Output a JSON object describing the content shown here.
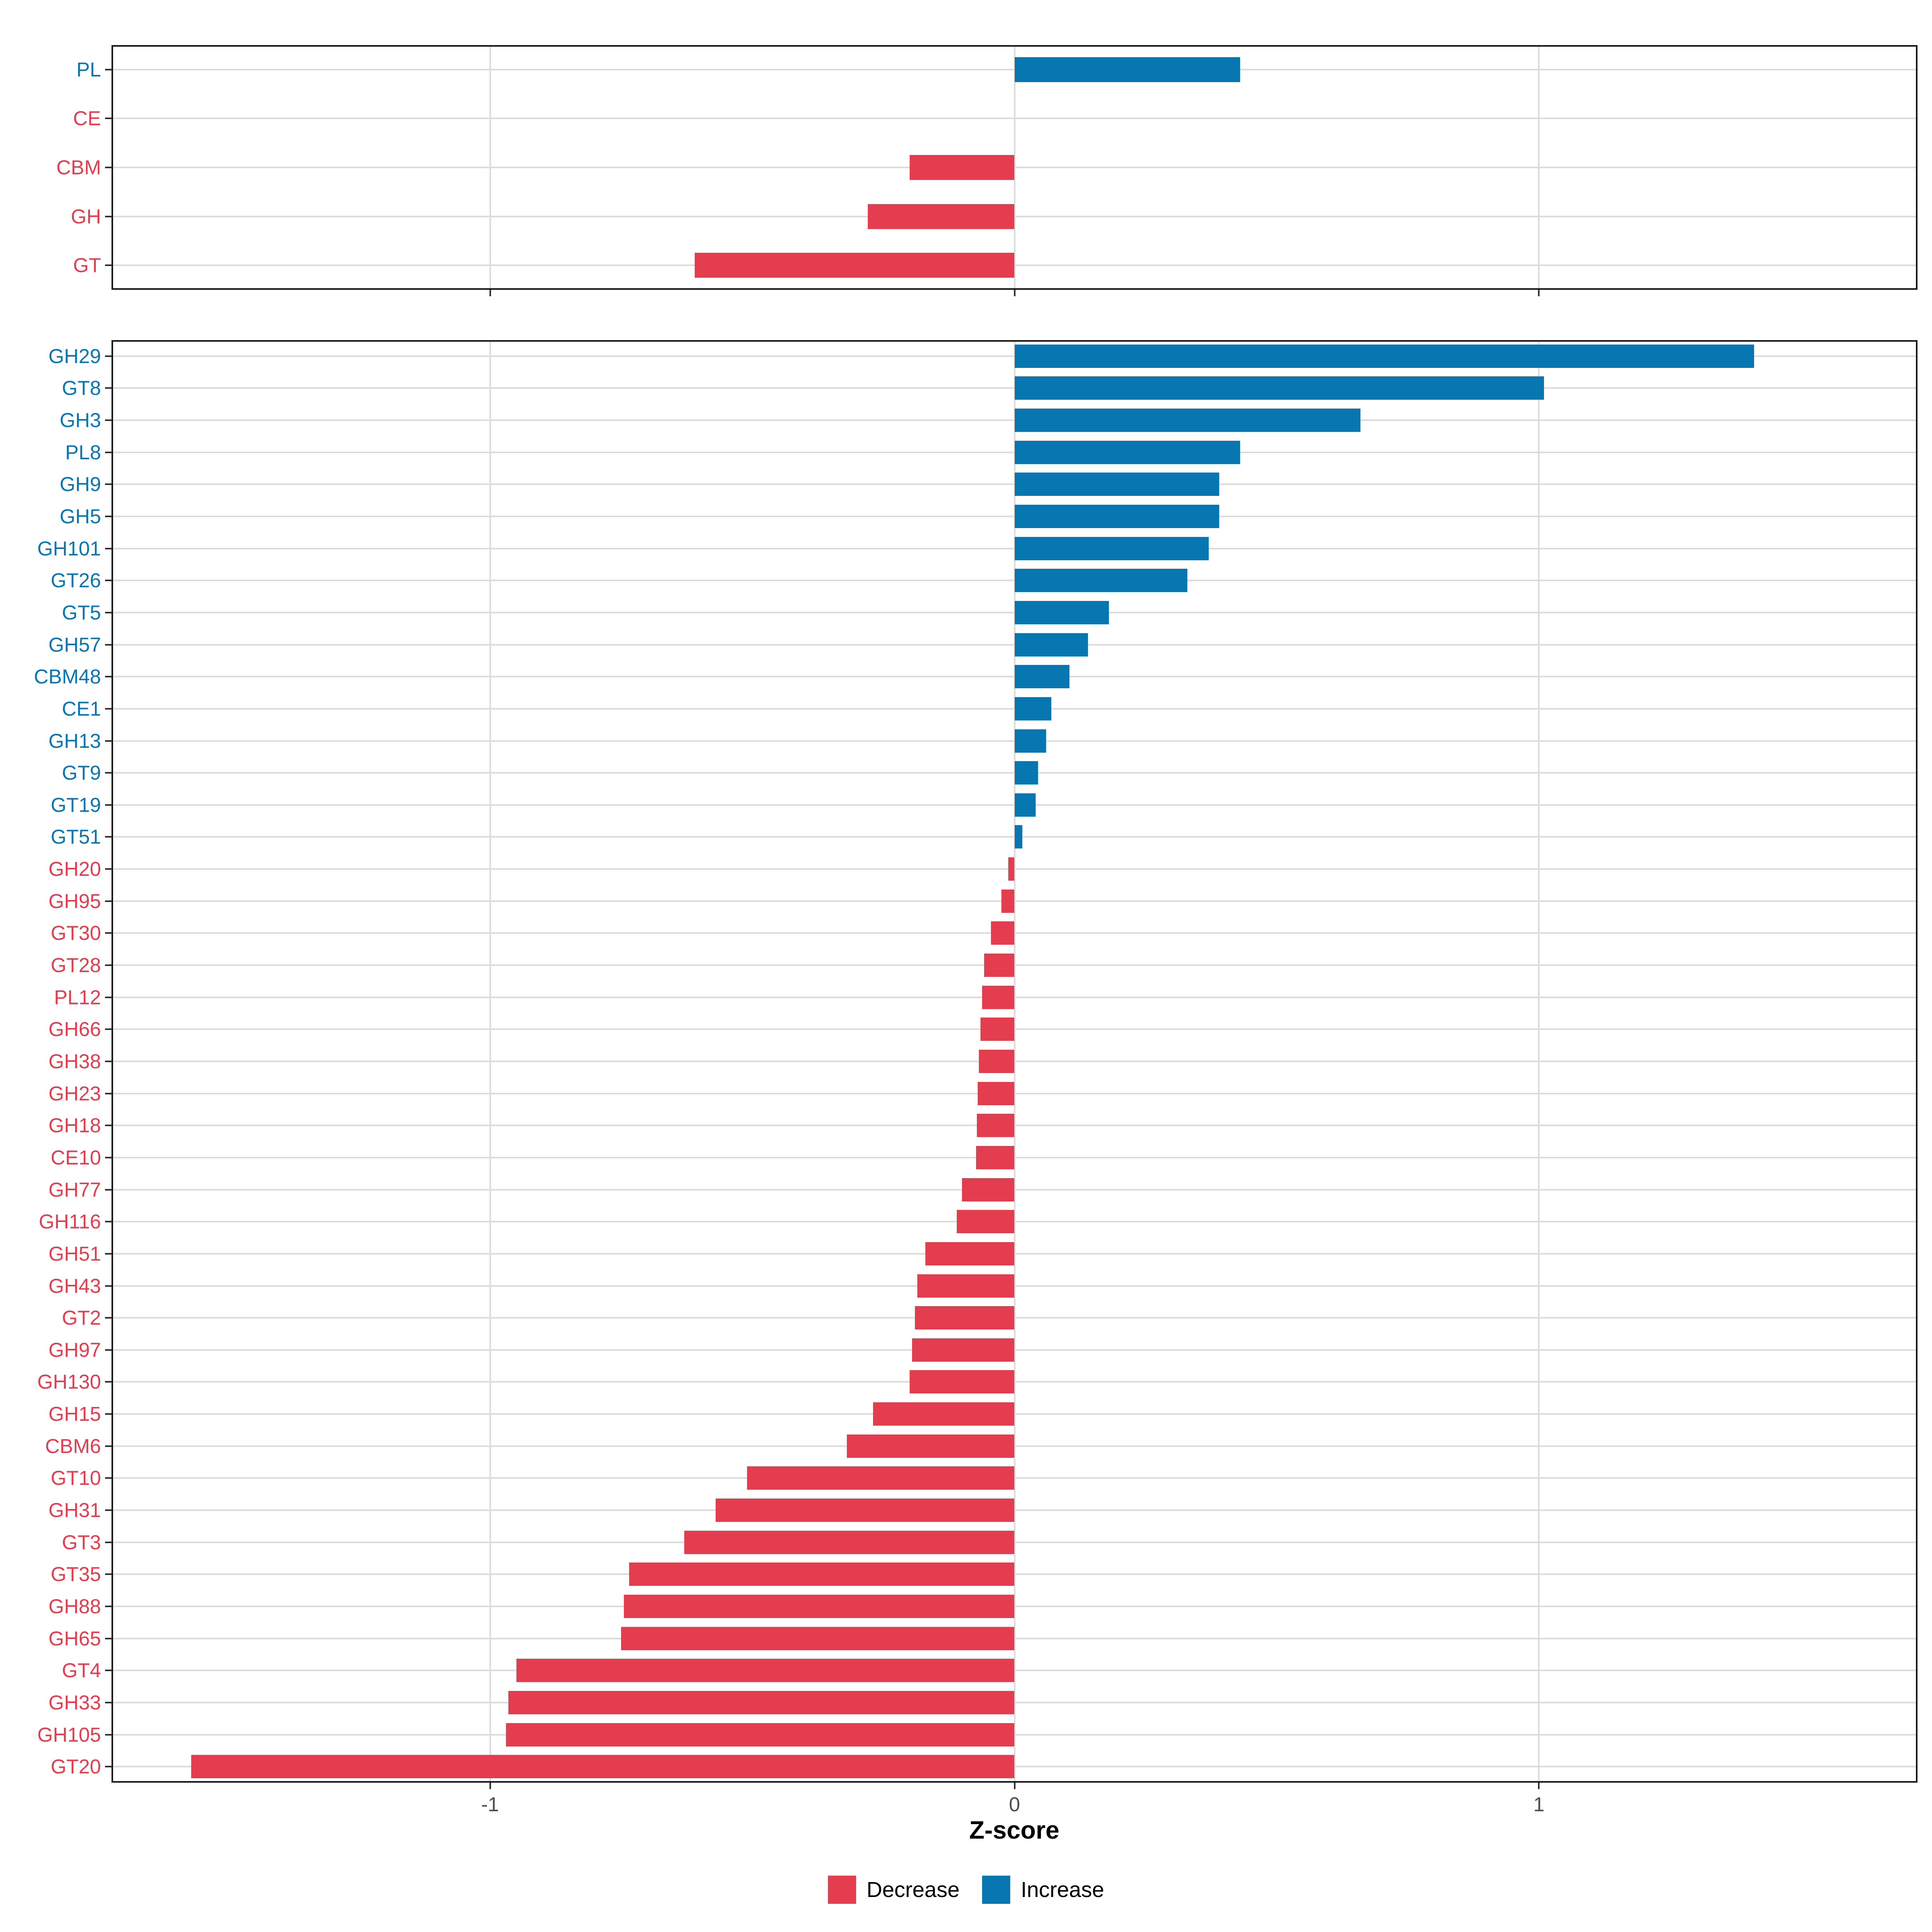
{
  "chart_data": {
    "type": "bar",
    "orientation": "horizontal",
    "xlabel": "Z-score",
    "xlim": [
      -1.722,
      1.722
    ],
    "x_ticks": [
      {
        "value": -1,
        "label": "-1"
      },
      {
        "value": 0,
        "label": "0"
      },
      {
        "value": 1,
        "label": "1"
      }
    ],
    "grid": "major-only",
    "legend_position": "bottom",
    "legend": [
      {
        "key": "decrease",
        "label": "Decrease",
        "color": "#E43D4F"
      },
      {
        "key": "increase",
        "label": "Increase",
        "color": "#0776B1"
      }
    ],
    "panels": [
      {
        "name": "cazyme-class-summary",
        "items": [
          {
            "category": "PL",
            "value": 0.43,
            "direction": "increase"
          },
          {
            "category": "CE",
            "value": 0.0,
            "direction": "decrease"
          },
          {
            "category": "CBM",
            "value": -0.2,
            "direction": "decrease"
          },
          {
            "category": "GH",
            "value": -0.28,
            "direction": "decrease"
          },
          {
            "category": "GT",
            "value": -0.61,
            "direction": "decrease"
          }
        ]
      },
      {
        "name": "cazyme-family-detail",
        "items": [
          {
            "category": "GH29",
            "value": 1.41,
            "direction": "increase"
          },
          {
            "category": "GT8",
            "value": 1.01,
            "direction": "increase"
          },
          {
            "category": "GH3",
            "value": 0.66,
            "direction": "increase"
          },
          {
            "category": "PL8",
            "value": 0.43,
            "direction": "increase"
          },
          {
            "category": "GH9",
            "value": 0.39,
            "direction": "increase"
          },
          {
            "category": "GH5",
            "value": 0.39,
            "direction": "increase"
          },
          {
            "category": "GH101",
            "value": 0.37,
            "direction": "increase"
          },
          {
            "category": "GT26",
            "value": 0.33,
            "direction": "increase"
          },
          {
            "category": "GT5",
            "value": 0.18,
            "direction": "increase"
          },
          {
            "category": "GH57",
            "value": 0.14,
            "direction": "increase"
          },
          {
            "category": "CBM48",
            "value": 0.105,
            "direction": "increase"
          },
          {
            "category": "CE1",
            "value": 0.07,
            "direction": "increase"
          },
          {
            "category": "GH13",
            "value": 0.06,
            "direction": "increase"
          },
          {
            "category": "GT9",
            "value": 0.045,
            "direction": "increase"
          },
          {
            "category": "GT19",
            "value": 0.04,
            "direction": "increase"
          },
          {
            "category": "GT51",
            "value": 0.015,
            "direction": "increase"
          },
          {
            "category": "GH20",
            "value": -0.012,
            "direction": "decrease"
          },
          {
            "category": "GH95",
            "value": -0.025,
            "direction": "decrease"
          },
          {
            "category": "GT30",
            "value": -0.045,
            "direction": "decrease"
          },
          {
            "category": "GT28",
            "value": -0.058,
            "direction": "decrease"
          },
          {
            "category": "PL12",
            "value": -0.062,
            "direction": "decrease"
          },
          {
            "category": "GH66",
            "value": -0.065,
            "direction": "decrease"
          },
          {
            "category": "GH38",
            "value": -0.068,
            "direction": "decrease"
          },
          {
            "category": "GH23",
            "value": -0.07,
            "direction": "decrease"
          },
          {
            "category": "GH18",
            "value": -0.072,
            "direction": "decrease"
          },
          {
            "category": "CE10",
            "value": -0.073,
            "direction": "decrease"
          },
          {
            "category": "GH77",
            "value": -0.1,
            "direction": "decrease"
          },
          {
            "category": "GH116",
            "value": -0.11,
            "direction": "decrease"
          },
          {
            "category": "GH51",
            "value": -0.17,
            "direction": "decrease"
          },
          {
            "category": "GH43",
            "value": -0.185,
            "direction": "decrease"
          },
          {
            "category": "GT2",
            "value": -0.19,
            "direction": "decrease"
          },
          {
            "category": "GH97",
            "value": -0.195,
            "direction": "decrease"
          },
          {
            "category": "GH130",
            "value": -0.2,
            "direction": "decrease"
          },
          {
            "category": "GH15",
            "value": -0.27,
            "direction": "decrease"
          },
          {
            "category": "CBM6",
            "value": -0.32,
            "direction": "decrease"
          },
          {
            "category": "GT10",
            "value": -0.51,
            "direction": "decrease"
          },
          {
            "category": "GH31",
            "value": -0.57,
            "direction": "decrease"
          },
          {
            "category": "GT3",
            "value": -0.63,
            "direction": "decrease"
          },
          {
            "category": "GT35",
            "value": -0.735,
            "direction": "decrease"
          },
          {
            "category": "GH88",
            "value": -0.745,
            "direction": "decrease"
          },
          {
            "category": "GH65",
            "value": -0.75,
            "direction": "decrease"
          },
          {
            "category": "GT4",
            "value": -0.95,
            "direction": "decrease"
          },
          {
            "category": "GH33",
            "value": -0.965,
            "direction": "decrease"
          },
          {
            "category": "GH105",
            "value": -0.97,
            "direction": "decrease"
          },
          {
            "category": "GT20",
            "value": -1.57,
            "direction": "decrease"
          }
        ]
      }
    ]
  }
}
